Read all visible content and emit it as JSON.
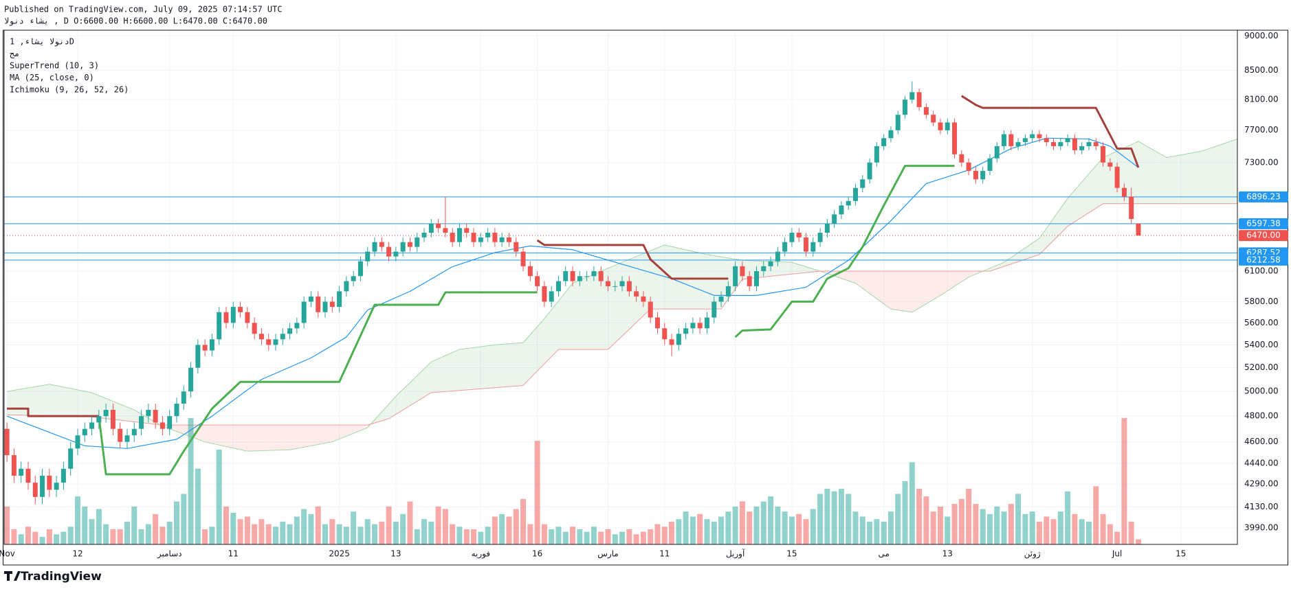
{
  "header": {
    "published": "Published on TradingView.com, July 09, 2025 07:14:57 UTC",
    "symbol_line": "یشاء دنولا , D O:6600.00 H:6600.00 L:6470.00 C:6470.00",
    "logo": "TradingView"
  },
  "chart_data": {
    "type": "candlestick",
    "legend": [
      "دنولا یشاء, 1D",
      "مج",
      "SuperTrend (10, 3)",
      "MA (25, close, 0)",
      "Ichimoku (9, 26, 52, 26)"
    ],
    "log_scale": true,
    "grid": true,
    "up_color": "#26a69a",
    "down_color": "#ef5350",
    "xlim": [
      -0.4,
      174
    ],
    "ylim": [
      3883,
      9085
    ],
    "yticks": [
      {
        "value": 9000,
        "label": "9000.00"
      },
      {
        "value": 8500,
        "label": "8500.00"
      },
      {
        "value": 8100,
        "label": "8100.00"
      },
      {
        "value": 7700,
        "label": "7700.00"
      },
      {
        "value": 7300,
        "label": "7300.00"
      },
      {
        "value": 6100,
        "label": "6100.00"
      },
      {
        "value": 5800,
        "label": "5800.00"
      },
      {
        "value": 5600,
        "label": "5600.00"
      },
      {
        "value": 5400,
        "label": "5400.00"
      },
      {
        "value": 5200,
        "label": "5200.00"
      },
      {
        "value": 5000,
        "label": "5000.00"
      },
      {
        "value": 4800,
        "label": "4800.00"
      },
      {
        "value": 4600,
        "label": "4600.00"
      },
      {
        "value": 4440,
        "label": "4440.00"
      },
      {
        "value": 4290,
        "label": "4290.00"
      },
      {
        "value": 4130,
        "label": "4130.00"
      },
      {
        "value": 3990,
        "label": "3990.00"
      }
    ],
    "xticks": [
      {
        "value": 0,
        "label": "Nov"
      },
      {
        "value": 10,
        "label": "12"
      },
      {
        "value": 23,
        "label": "دسامبر"
      },
      {
        "value": 32,
        "label": "11"
      },
      {
        "value": 47,
        "label": "2025"
      },
      {
        "value": 55,
        "label": "13"
      },
      {
        "value": 67,
        "label": "فوریه"
      },
      {
        "value": 75,
        "label": "16"
      },
      {
        "value": 85,
        "label": "مارس"
      },
      {
        "value": 93,
        "label": "11"
      },
      {
        "value": 103,
        "label": "آوریل"
      },
      {
        "value": 111,
        "label": "15"
      },
      {
        "value": 124,
        "label": "می"
      },
      {
        "value": 133,
        "label": "13"
      },
      {
        "value": 145,
        "label": "ژوئن"
      },
      {
        "value": 157,
        "label": "Jul"
      },
      {
        "value": 166,
        "label": "15"
      }
    ],
    "open": [
      4700,
      4500,
      4350,
      4400,
      4300,
      4200,
      4350,
      4250,
      4300,
      4400,
      4550,
      4650,
      4700,
      4750,
      4800,
      4850,
      4700,
      4600,
      4650,
      4700,
      4800,
      4850,
      4750,
      4700,
      4800,
      4900,
      5000,
      5200,
      5400,
      5350,
      5450,
      5700,
      5600,
      5750,
      5700,
      5600,
      5500,
      5450,
      5400,
      5450,
      5500,
      5550,
      5600,
      5800,
      5850,
      5700,
      5800,
      5750,
      5900,
      6000,
      6050,
      6200,
      6300,
      6400,
      6350,
      6250,
      6300,
      6400,
      6350,
      6450,
      6500,
      6600,
      6550,
      6500,
      6400,
      6550,
      6500,
      6400,
      6450,
      6500,
      6400,
      6450,
      6400,
      6300,
      6150,
      6050,
      5950,
      5800,
      5900,
      6000,
      6100,
      6000,
      6050,
      6050,
      6100,
      6000,
      5950,
      5950,
      6000,
      5900,
      5850,
      5800,
      5650,
      5550,
      5450,
      5400,
      5500,
      5550,
      5600,
      5550,
      5650,
      5800,
      5850,
      5950,
      6150,
      6050,
      5950,
      6100,
      6150,
      6200,
      6300,
      6400,
      6500,
      6450,
      6300,
      6400,
      6500,
      6600,
      6700,
      6800,
      6850,
      7000,
      7100,
      7300,
      7500,
      7600,
      7700,
      7900,
      8100,
      8200,
      8000,
      7900,
      7800,
      7700,
      7800,
      7400,
      7300,
      7200,
      7100,
      7200,
      7350,
      7500,
      7650,
      7500,
      7550,
      7600,
      7650,
      7600,
      7550,
      7500,
      7550,
      7600,
      7450,
      7500,
      7550,
      7500,
      7300,
      7250,
      7000,
      6900,
      6600
    ],
    "high": [
      4750,
      4550,
      4450,
      4450,
      4350,
      4400,
      4400,
      4350,
      4450,
      4600,
      4700,
      4750,
      4800,
      4850,
      4900,
      4900,
      4750,
      4700,
      4750,
      4850,
      4900,
      4900,
      4800,
      4850,
      4950,
      5050,
      5250,
      5450,
      5450,
      5500,
      5750,
      5750,
      5800,
      5800,
      5750,
      5650,
      5550,
      5500,
      5500,
      5550,
      5600,
      5650,
      5850,
      5900,
      5900,
      5850,
      5850,
      5950,
      6050,
      6100,
      6250,
      6350,
      6450,
      6450,
      6400,
      6350,
      6450,
      6450,
      6500,
      6550,
      6650,
      6650,
      6900,
      6550,
      6600,
      6600,
      6550,
      6500,
      6550,
      6550,
      6500,
      6500,
      6450,
      6350,
      6200,
      6100,
      6000,
      5950,
      6050,
      6150,
      6150,
      6100,
      6100,
      6150,
      6150,
      6050,
      6000,
      6050,
      6050,
      5950,
      5900,
      5850,
      5700,
      5600,
      5500,
      5550,
      5600,
      5650,
      5650,
      5700,
      5850,
      5900,
      6000,
      6200,
      6200,
      6100,
      6150,
      6200,
      6250,
      6350,
      6450,
      6550,
      6550,
      6500,
      6450,
      6550,
      6650,
      6750,
      6850,
      6900,
      7050,
      7150,
      7350,
      7550,
      7650,
      7750,
      7950,
      8150,
      8350,
      8250,
      8050,
      7950,
      7850,
      7850,
      7850,
      7450,
      7350,
      7250,
      7250,
      7400,
      7550,
      7700,
      7700,
      7600,
      7650,
      7700,
      7700,
      7650,
      7600,
      7600,
      7650,
      7650,
      7550,
      7600,
      7600,
      7550,
      7350,
      7300,
      7050,
      7000,
      6600
    ],
    "low": [
      4450,
      4300,
      4300,
      4250,
      4150,
      4150,
      4200,
      4200,
      4250,
      4350,
      4500,
      4600,
      4650,
      4700,
      4750,
      4650,
      4550,
      4550,
      4600,
      4650,
      4750,
      4700,
      4650,
      4650,
      4750,
      4850,
      4950,
      5150,
      5300,
      5300,
      5400,
      5550,
      5550,
      5650,
      5550,
      5450,
      5400,
      5350,
      5350,
      5400,
      5450,
      5500,
      5550,
      5750,
      5650,
      5650,
      5700,
      5700,
      5850,
      5950,
      6000,
      6150,
      6250,
      6300,
      6200,
      6200,
      6250,
      6300,
      6300,
      6400,
      6450,
      6500,
      6450,
      6350,
      6350,
      6450,
      6350,
      6350,
      6400,
      6350,
      6350,
      6350,
      6250,
      6100,
      6000,
      5900,
      5750,
      5750,
      5850,
      5950,
      5950,
      5950,
      6000,
      6000,
      5950,
      5900,
      5900,
      5900,
      5850,
      5800,
      5750,
      5600,
      5500,
      5400,
      5300,
      5350,
      5450,
      5500,
      5500,
      5500,
      5600,
      5750,
      5800,
      5900,
      6000,
      5900,
      5900,
      6050,
      6100,
      6150,
      6250,
      6350,
      6400,
      6250,
      6250,
      6350,
      6450,
      6550,
      6650,
      6750,
      6800,
      6950,
      7050,
      7250,
      7450,
      7550,
      7650,
      7850,
      8050,
      7950,
      7850,
      7750,
      7650,
      7650,
      7350,
      7250,
      7150,
      7050,
      7050,
      7150,
      7300,
      7450,
      7450,
      7450,
      7500,
      7550,
      7550,
      7500,
      7450,
      7450,
      7500,
      7400,
      7400,
      7450,
      7450,
      7250,
      7200,
      6950,
      6850,
      6600,
      6470
    ],
    "close": [
      4500,
      4350,
      4400,
      4300,
      4200,
      4350,
      4250,
      4300,
      4400,
      4550,
      4650,
      4700,
      4750,
      4800,
      4850,
      4700,
      4600,
      4650,
      4700,
      4800,
      4850,
      4750,
      4700,
      4800,
      4900,
      5000,
      5200,
      5400,
      5350,
      5450,
      5700,
      5600,
      5750,
      5700,
      5600,
      5500,
      5450,
      5400,
      5450,
      5500,
      5550,
      5600,
      5800,
      5850,
      5700,
      5800,
      5750,
      5900,
      6000,
      6050,
      6200,
      6300,
      6400,
      6350,
      6250,
      6300,
      6400,
      6350,
      6450,
      6500,
      6600,
      6550,
      6500,
      6400,
      6550,
      6500,
      6400,
      6450,
      6500,
      6400,
      6450,
      6400,
      6300,
      6150,
      6050,
      5950,
      5800,
      5900,
      6000,
      6100,
      6000,
      6050,
      6050,
      6100,
      6000,
      5950,
      5950,
      6000,
      5900,
      5850,
      5800,
      5650,
      5550,
      5450,
      5400,
      5500,
      5550,
      5600,
      5550,
      5650,
      5800,
      5850,
      5950,
      6150,
      6050,
      5950,
      6100,
      6150,
      6200,
      6300,
      6400,
      6500,
      6450,
      6300,
      6400,
      6500,
      6600,
      6700,
      6800,
      6850,
      7000,
      7100,
      7300,
      7500,
      7600,
      7700,
      7900,
      8100,
      8200,
      8000,
      7900,
      7800,
      7700,
      7800,
      7400,
      7300,
      7200,
      7100,
      7200,
      7350,
      7500,
      7650,
      7500,
      7550,
      7600,
      7650,
      7600,
      7550,
      7500,
      7550,
      7600,
      7450,
      7500,
      7550,
      7500,
      7300,
      7250,
      7000,
      6900,
      6650,
      6470
    ],
    "volume": [
      30,
      12,
      8,
      14,
      10,
      6,
      12,
      8,
      10,
      14,
      38,
      30,
      20,
      28,
      16,
      12,
      12,
      18,
      30,
      12,
      16,
      24,
      14,
      18,
      34,
      40,
      100,
      60,
      12,
      14,
      75,
      30,
      25,
      20,
      22,
      16,
      20,
      16,
      14,
      18,
      16,
      22,
      28,
      24,
      30,
      16,
      20,
      16,
      14,
      26,
      14,
      20,
      16,
      18,
      30,
      18,
      24,
      34,
      12,
      20,
      18,
      30,
      28,
      16,
      14,
      12,
      12,
      10,
      14,
      22,
      24,
      22,
      28,
      36,
      16,
      82,
      16,
      12,
      14,
      10,
      14,
      12,
      10,
      14,
      10,
      12,
      8,
      10,
      12,
      8,
      10,
      12,
      16,
      14,
      18,
      20,
      26,
      22,
      24,
      20,
      18,
      22,
      26,
      30,
      34,
      26,
      30,
      34,
      38,
      30,
      26,
      22,
      24,
      20,
      28,
      40,
      44,
      42,
      44,
      40,
      26,
      22,
      18,
      20,
      18,
      26,
      40,
      50,
      65,
      44,
      38,
      26,
      30,
      22,
      32,
      36,
      44,
      32,
      28,
      24,
      30,
      26,
      32,
      40,
      24,
      26,
      18,
      22,
      20,
      26,
      42,
      24,
      20,
      18,
      46,
      24,
      16,
      10,
      100,
      18,
      4
    ],
    "ma": {
      "color": "#2196f3",
      "x": [
        0,
        11,
        17,
        24,
        29,
        36,
        43,
        48,
        51,
        57,
        63,
        69,
        74,
        80,
        87,
        94,
        100,
        106,
        113,
        119,
        125,
        130,
        136,
        142,
        147,
        153,
        156,
        160
      ],
      "values": [
        4800,
        4570,
        4550,
        4620,
        4800,
        5100,
        5285,
        5470,
        5720,
        5900,
        6145,
        6290,
        6360,
        6320,
        6170,
        6025,
        5860,
        5860,
        5940,
        6210,
        6630,
        7050,
        7210,
        7470,
        7600,
        7590,
        7500,
        7240
      ]
    },
    "supertrend_up": {
      "color": "#4caf50",
      "x": [
        13,
        14,
        23,
        25,
        29,
        33,
        47,
        52,
        61,
        62,
        75,
        null,
        103,
        104,
        108,
        111,
        114,
        116,
        119,
        121,
        124,
        127,
        134
      ],
      "values": [
        4800,
        4360,
        4360,
        4530,
        4860,
        5080,
        5080,
        5770,
        5770,
        5890,
        5890,
        null,
        5470,
        5530,
        5540,
        5800,
        5800,
        6025,
        6130,
        6350,
        6800,
        7260,
        7260
      ]
    },
    "supertrend_down": {
      "color": "#a5403c",
      "x": [
        0,
        3,
        3,
        13,
        null,
        75,
        76,
        90,
        91,
        94,
        102,
        null,
        135,
        137,
        138,
        154,
        157,
        159,
        160
      ],
      "values": [
        4860,
        4860,
        4800,
        4800,
        null,
        6420,
        6370,
        6370,
        6220,
        6025,
        6025,
        null,
        8150,
        8030,
        7990,
        7990,
        7470,
        7470,
        7240
      ]
    },
    "span_a": {
      "color": "#a5d6a7",
      "x": [
        0,
        6,
        12,
        18,
        22,
        28,
        34,
        40,
        46,
        51,
        55,
        60,
        64,
        69,
        73,
        76,
        80,
        87,
        93,
        99,
        104,
        111,
        115,
        120,
        125,
        128,
        132,
        136,
        141,
        146,
        150,
        155,
        160,
        164,
        169,
        174
      ],
      "values": [
        5000,
        5060,
        4990,
        4850,
        4720,
        4600,
        4530,
        4540,
        4600,
        4710,
        4960,
        5250,
        5360,
        5400,
        5420,
        5640,
        5980,
        6190,
        6370,
        6270,
        6210,
        6190,
        6100,
        5980,
        5730,
        5700,
        5860,
        6040,
        6190,
        6440,
        6880,
        7360,
        7560,
        7360,
        7440,
        7590
      ]
    },
    "span_b": {
      "color": "#ef9a9a",
      "x": [
        0,
        11,
        22,
        51,
        54,
        60,
        73,
        78,
        85,
        91,
        101,
        104,
        115,
        139,
        146,
        150,
        155,
        174
      ],
      "values": [
        4810,
        4800,
        4730,
        4730,
        4780,
        4990,
        5050,
        5360,
        5360,
        5730,
        5730,
        6020,
        6100,
        6100,
        6270,
        6570,
        6820,
        6820
      ]
    },
    "levels": [
      6896.23,
      6597.38,
      6287.52,
      6212.58
    ],
    "level_color": "#2196f3",
    "last_price": {
      "value": 6470,
      "label": "6470.00"
    }
  }
}
